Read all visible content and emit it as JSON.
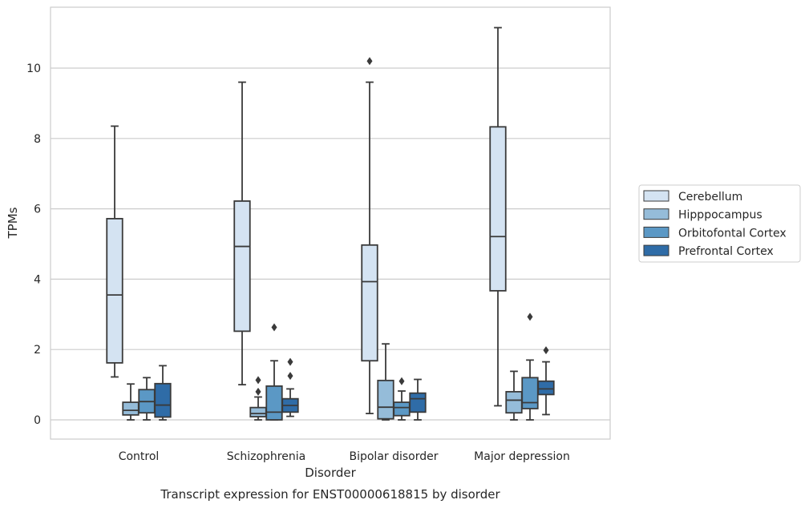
{
  "chart_data": {
    "type": "box",
    "title": "Transcript expression for ENST00000618815 by disorder",
    "xlabel": "Disorder",
    "ylabel": "TPMs",
    "ylim": [
      -0.55,
      11.75
    ],
    "yticks": [
      0,
      2,
      4,
      6,
      8,
      10
    ],
    "grid": true,
    "legend_position": "right",
    "categories": [
      "Control",
      "Schizophrenia",
      "Bipolar disorder",
      "Major depression"
    ],
    "series": [
      {
        "name": "Cerebellum",
        "color": "#d4e3f2",
        "boxes": [
          {
            "whislo": 1.22,
            "q1": 1.62,
            "med": 3.55,
            "q3": 5.72,
            "whishi": 8.35,
            "fliers": []
          },
          {
            "whislo": 1.0,
            "q1": 2.52,
            "med": 4.93,
            "q3": 6.22,
            "whishi": 9.6,
            "fliers": []
          },
          {
            "whislo": 0.18,
            "q1": 1.68,
            "med": 3.93,
            "q3": 4.97,
            "whishi": 9.6,
            "fliers": [
              10.2
            ]
          },
          {
            "whislo": 0.4,
            "q1": 3.67,
            "med": 5.21,
            "q3": 8.33,
            "whishi": 11.15,
            "fliers": []
          }
        ]
      },
      {
        "name": "Hipppocampus",
        "color": "#95bcd9",
        "boxes": [
          {
            "whislo": 0.0,
            "q1": 0.14,
            "med": 0.27,
            "q3": 0.5,
            "whishi": 1.02,
            "fliers": []
          },
          {
            "whislo": 0.0,
            "q1": 0.09,
            "med": 0.18,
            "q3": 0.35,
            "whishi": 0.65,
            "fliers": [
              0.8,
              1.13
            ]
          },
          {
            "whislo": 0.0,
            "q1": 0.03,
            "med": 0.36,
            "q3": 1.12,
            "whishi": 2.16,
            "fliers": []
          },
          {
            "whislo": 0.0,
            "q1": 0.2,
            "med": 0.56,
            "q3": 0.8,
            "whishi": 1.38,
            "fliers": []
          }
        ]
      },
      {
        "name": "Orbitofontal Cortex",
        "color": "#5b98c5",
        "boxes": [
          {
            "whislo": 0.0,
            "q1": 0.2,
            "med": 0.52,
            "q3": 0.86,
            "whishi": 1.2,
            "fliers": []
          },
          {
            "whislo": 0.0,
            "q1": 0.0,
            "med": 0.22,
            "q3": 0.96,
            "whishi": 1.68,
            "fliers": [
              2.63
            ]
          },
          {
            "whislo": 0.0,
            "q1": 0.12,
            "med": 0.35,
            "q3": 0.5,
            "whishi": 0.82,
            "fliers": [
              1.1
            ]
          },
          {
            "whislo": 0.0,
            "q1": 0.32,
            "med": 0.49,
            "q3": 1.2,
            "whishi": 1.7,
            "fliers": [
              2.93
            ]
          }
        ]
      },
      {
        "name": "Prefrontal Cortex",
        "color": "#2f6ca7",
        "boxes": [
          {
            "whislo": 0.0,
            "q1": 0.08,
            "med": 0.42,
            "q3": 1.03,
            "whishi": 1.54,
            "fliers": []
          },
          {
            "whislo": 0.1,
            "q1": 0.22,
            "med": 0.41,
            "q3": 0.6,
            "whishi": 0.88,
            "fliers": [
              1.25,
              1.65
            ]
          },
          {
            "whislo": 0.0,
            "q1": 0.22,
            "med": 0.6,
            "q3": 0.76,
            "whishi": 1.15,
            "fliers": []
          },
          {
            "whislo": 0.15,
            "q1": 0.72,
            "med": 0.88,
            "q3": 1.1,
            "whishi": 1.65,
            "fliers": [
              1.98
            ]
          }
        ]
      }
    ]
  }
}
